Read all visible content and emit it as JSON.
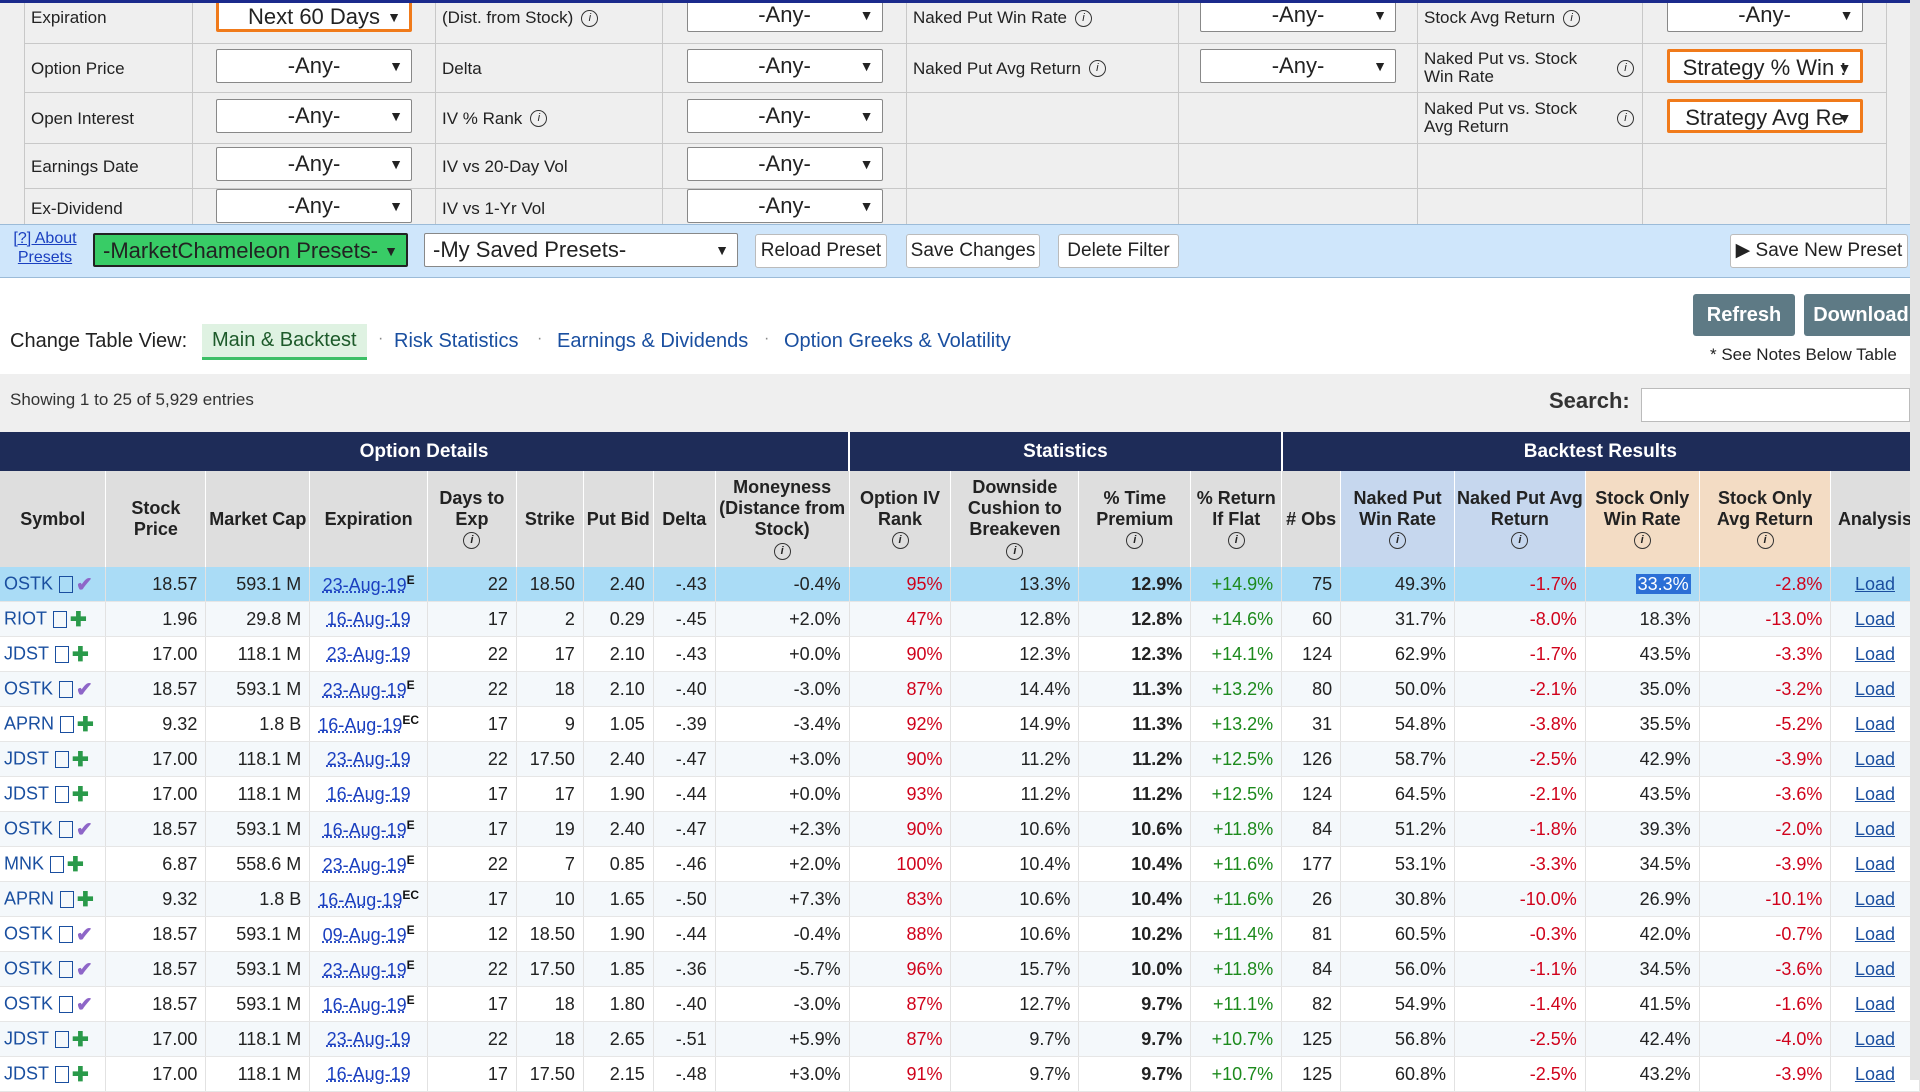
{
  "filters": {
    "rows": [
      [
        "Expiration",
        "Next 60 Days",
        "(Dist. from Stock)",
        "-Any-",
        "Naked Put Win Rate",
        "-Any-",
        "Stock Avg Return",
        "-Any-"
      ],
      [
        "Option Price",
        "-Any-",
        "Delta",
        "-Any-",
        "Naked Put Avg Return",
        "-Any-",
        "Naked Put vs. Stock Win Rate",
        "Strategy % Win :"
      ],
      [
        "Open Interest",
        "-Any-",
        "IV % Rank",
        "-Any-",
        null,
        null,
        "Naked Put vs. Stock Avg Return",
        "Strategy Avg Re"
      ],
      [
        "Earnings Date",
        "-Any-",
        "IV vs 20-Day Vol",
        "-Any-",
        null,
        null,
        null,
        null
      ],
      [
        "Ex-Dividend",
        "-Any-",
        "IV vs 1-Yr Vol",
        "-Any-",
        null,
        null,
        null,
        null
      ]
    ]
  },
  "presets": {
    "about": "[?] About Presets",
    "market": "-MarketChameleon Presets-",
    "saved": "-My Saved Presets-",
    "reload": "Reload Preset",
    "save": "Save Changes",
    "delete": "Delete Filter",
    "save_new": "Save New Preset"
  },
  "actions": {
    "refresh": "Refresh",
    "download": "Download",
    "notes": "* See Notes Below Table"
  },
  "table_view": {
    "label": "Change Table View:",
    "tabs": [
      "Main & Backtest",
      "Risk Statistics",
      "Earnings & Dividends",
      "Option Greeks & Volatility"
    ]
  },
  "entries_info": "Showing 1 to 25 of 5,929 entries",
  "search_label": "Search:",
  "table": {
    "groups": [
      {
        "label": "Option Details",
        "span": 9
      },
      {
        "label": "Statistics",
        "span": 4
      },
      {
        "label": "Backtest Results",
        "span": 6
      }
    ],
    "columns": [
      "Symbol",
      "Stock Price",
      "Market Cap",
      "Expiration",
      "Days to Exp",
      "Strike",
      "Put Bid",
      "Delta",
      "Moneyness (Distance from Stock)",
      "Option IV Rank",
      "Downside Cushion to Breakeven",
      "% Time Premium",
      "% Return If Flat",
      "# Obs",
      "Naked Put Win Rate",
      "Naked Put Avg Return",
      "Stock Only Win Rate",
      "Stock Only Avg Return",
      "Analysis"
    ],
    "rows": [
      {
        "icon": "check",
        "exp_note": "E",
        "cells": [
          "OSTK",
          "18.57",
          "593.1 M",
          "23-Aug-19",
          "22",
          "18.50",
          "2.40",
          "-.43",
          "-0.4%",
          "95%",
          "13.3%",
          "12.9%",
          "+14.9%",
          "75",
          "49.3%",
          "-1.7%",
          "33.3%",
          "-2.8%",
          "Load"
        ]
      },
      {
        "icon": "plus",
        "cells": [
          "RIOT",
          "1.96",
          "29.8 M",
          "16-Aug-19",
          "17",
          "2",
          "0.29",
          "-.45",
          "+2.0%",
          "47%",
          "12.8%",
          "12.8%",
          "+14.6%",
          "60",
          "31.7%",
          "-8.0%",
          "18.3%",
          "-13.0%",
          "Load"
        ]
      },
      {
        "icon": "plus",
        "cells": [
          "JDST",
          "17.00",
          "118.1 M",
          "23-Aug-19",
          "22",
          "17",
          "2.10",
          "-.43",
          "+0.0%",
          "90%",
          "12.3%",
          "12.3%",
          "+14.1%",
          "124",
          "62.9%",
          "-1.7%",
          "43.5%",
          "-3.3%",
          "Load"
        ]
      },
      {
        "icon": "check",
        "exp_note": "E",
        "cells": [
          "OSTK",
          "18.57",
          "593.1 M",
          "23-Aug-19",
          "22",
          "18",
          "2.10",
          "-.40",
          "-3.0%",
          "87%",
          "14.4%",
          "11.3%",
          "+13.2%",
          "80",
          "50.0%",
          "-2.1%",
          "35.0%",
          "-3.2%",
          "Load"
        ]
      },
      {
        "icon": "plus",
        "exp_note": "EC",
        "cells": [
          "APRN",
          "9.32",
          "1.8 B",
          "16-Aug-19",
          "17",
          "9",
          "1.05",
          "-.39",
          "-3.4%",
          "92%",
          "14.9%",
          "11.3%",
          "+13.2%",
          "31",
          "54.8%",
          "-3.8%",
          "35.5%",
          "-5.2%",
          "Load"
        ]
      },
      {
        "icon": "plus",
        "cells": [
          "JDST",
          "17.00",
          "118.1 M",
          "23-Aug-19",
          "22",
          "17.50",
          "2.40",
          "-.47",
          "+3.0%",
          "90%",
          "11.2%",
          "11.2%",
          "+12.5%",
          "126",
          "58.7%",
          "-2.5%",
          "42.9%",
          "-3.9%",
          "Load"
        ]
      },
      {
        "icon": "plus",
        "cells": [
          "JDST",
          "17.00",
          "118.1 M",
          "16-Aug-19",
          "17",
          "17",
          "1.90",
          "-.44",
          "+0.0%",
          "93%",
          "11.2%",
          "11.2%",
          "+12.5%",
          "124",
          "64.5%",
          "-2.1%",
          "43.5%",
          "-3.6%",
          "Load"
        ]
      },
      {
        "icon": "check",
        "exp_note": "E",
        "cells": [
          "OSTK",
          "18.57",
          "593.1 M",
          "16-Aug-19",
          "17",
          "19",
          "2.40",
          "-.47",
          "+2.3%",
          "90%",
          "10.6%",
          "10.6%",
          "+11.8%",
          "84",
          "51.2%",
          "-1.8%",
          "39.3%",
          "-2.0%",
          "Load"
        ]
      },
      {
        "icon": "plus",
        "exp_note": "E",
        "cells": [
          "MNK",
          "6.87",
          "558.6 M",
          "23-Aug-19",
          "22",
          "7",
          "0.85",
          "-.46",
          "+2.0%",
          "100%",
          "10.4%",
          "10.4%",
          "+11.6%",
          "177",
          "53.1%",
          "-3.3%",
          "34.5%",
          "-3.9%",
          "Load"
        ]
      },
      {
        "icon": "plus",
        "exp_note": "EC",
        "cells": [
          "APRN",
          "9.32",
          "1.8 B",
          "16-Aug-19",
          "17",
          "10",
          "1.65",
          "-.50",
          "+7.3%",
          "83%",
          "10.6%",
          "10.4%",
          "+11.6%",
          "26",
          "30.8%",
          "-10.0%",
          "26.9%",
          "-10.1%",
          "Load"
        ]
      },
      {
        "icon": "check",
        "exp_note": "E",
        "cells": [
          "OSTK",
          "18.57",
          "593.1 M",
          "09-Aug-19",
          "12",
          "18.50",
          "1.90",
          "-.44",
          "-0.4%",
          "88%",
          "10.6%",
          "10.2%",
          "+11.4%",
          "81",
          "60.5%",
          "-0.3%",
          "42.0%",
          "-0.7%",
          "Load"
        ]
      },
      {
        "icon": "check",
        "exp_note": "E",
        "cells": [
          "OSTK",
          "18.57",
          "593.1 M",
          "23-Aug-19",
          "22",
          "17.50",
          "1.85",
          "-.36",
          "-5.7%",
          "96%",
          "15.7%",
          "10.0%",
          "+11.8%",
          "84",
          "56.0%",
          "-1.1%",
          "34.5%",
          "-3.6%",
          "Load"
        ]
      },
      {
        "icon": "check",
        "exp_note": "E",
        "cells": [
          "OSTK",
          "18.57",
          "593.1 M",
          "16-Aug-19",
          "17",
          "18",
          "1.80",
          "-.40",
          "-3.0%",
          "87%",
          "12.7%",
          "9.7%",
          "+11.1%",
          "82",
          "54.9%",
          "-1.4%",
          "41.5%",
          "-1.6%",
          "Load"
        ]
      },
      {
        "icon": "plus",
        "cells": [
          "JDST",
          "17.00",
          "118.1 M",
          "23-Aug-19",
          "22",
          "18",
          "2.65",
          "-.51",
          "+5.9%",
          "87%",
          "9.7%",
          "9.7%",
          "+10.7%",
          "125",
          "56.8%",
          "-2.5%",
          "42.4%",
          "-4.0%",
          "Load"
        ]
      },
      {
        "icon": "plus",
        "cells": [
          "JDST",
          "17.00",
          "118.1 M",
          "16-Aug-19",
          "17",
          "17.50",
          "2.15",
          "-.48",
          "+3.0%",
          "91%",
          "9.7%",
          "9.7%",
          "+10.7%",
          "125",
          "60.8%",
          "-2.5%",
          "43.2%",
          "-3.9%",
          "Load"
        ]
      }
    ]
  }
}
